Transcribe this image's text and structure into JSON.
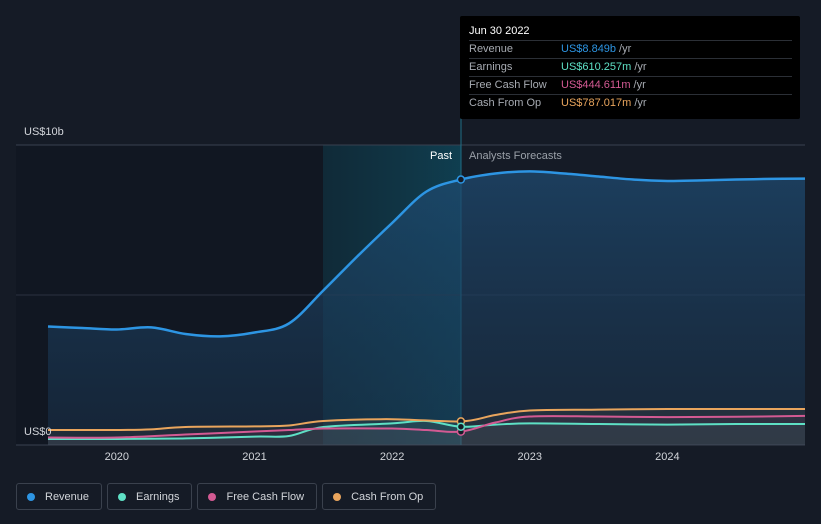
{
  "chart_data": {
    "type": "line",
    "y_axis": {
      "top_label": "US$10b",
      "bottom_label": "US$0",
      "ylim": [
        0,
        10
      ]
    },
    "x_axis": {
      "ticks": [
        "2020",
        "2021",
        "2022",
        "2023",
        "2024"
      ],
      "xlim": [
        2019.5,
        2025.0
      ]
    },
    "regions": {
      "past_label": "Past",
      "forecast_label": "Analysts Forecasts",
      "split_x": 2022.5
    },
    "series": [
      {
        "name": "Revenue",
        "color": "#2d95e3",
        "x": [
          2019.5,
          2019.75,
          2020.0,
          2020.25,
          2020.5,
          2020.75,
          2021.0,
          2021.25,
          2021.5,
          2021.75,
          2022.0,
          2022.25,
          2022.5,
          2022.75,
          2023.0,
          2023.25,
          2023.5,
          2023.75,
          2024.0,
          2024.25,
          2024.5,
          2024.75,
          2025.0
        ],
        "values": [
          3.95,
          3.9,
          3.85,
          3.92,
          3.7,
          3.62,
          3.75,
          4.05,
          5.15,
          6.3,
          7.4,
          8.45,
          8.849,
          9.05,
          9.12,
          9.05,
          8.95,
          8.85,
          8.8,
          8.82,
          8.85,
          8.87,
          8.88
        ]
      },
      {
        "name": "Earnings",
        "color": "#5ee0c5",
        "x": [
          2019.5,
          2020.0,
          2020.5,
          2021.0,
          2021.25,
          2021.5,
          2022.0,
          2022.25,
          2022.5,
          2022.75,
          2023.0,
          2023.5,
          2024.0,
          2024.5,
          2025.0
        ],
        "values": [
          0.2,
          0.2,
          0.22,
          0.28,
          0.3,
          0.6,
          0.72,
          0.8,
          0.61,
          0.68,
          0.72,
          0.7,
          0.68,
          0.7,
          0.7
        ]
      },
      {
        "name": "Free Cash Flow",
        "color": "#d35a93",
        "x": [
          2019.5,
          2020.0,
          2020.5,
          2021.0,
          2021.25,
          2021.5,
          2022.0,
          2022.25,
          2022.5,
          2022.75,
          2023.0,
          2023.5,
          2024.0,
          2024.5,
          2025.0
        ],
        "values": [
          0.25,
          0.25,
          0.35,
          0.45,
          0.5,
          0.55,
          0.55,
          0.5,
          0.445,
          0.75,
          0.95,
          0.95,
          0.93,
          0.94,
          0.97
        ]
      },
      {
        "name": "Cash From Op",
        "color": "#e9a55d",
        "x": [
          2019.5,
          2020.0,
          2020.25,
          2020.5,
          2021.0,
          2021.25,
          2021.5,
          2022.0,
          2022.5,
          2022.75,
          2023.0,
          2023.5,
          2024.0,
          2024.5,
          2025.0
        ],
        "values": [
          0.5,
          0.5,
          0.52,
          0.6,
          0.62,
          0.65,
          0.8,
          0.86,
          0.787,
          1.0,
          1.15,
          1.18,
          1.2,
          1.2,
          1.2
        ]
      }
    ]
  },
  "tooltip": {
    "date": "Jun 30 2022",
    "rows": [
      {
        "label": "Revenue",
        "value": "US$8.849b",
        "unit": "/yr",
        "color": "#2d95e3"
      },
      {
        "label": "Earnings",
        "value": "US$610.257m",
        "unit": "/yr",
        "color": "#5ee0c5"
      },
      {
        "label": "Free Cash Flow",
        "value": "US$444.611m",
        "unit": "/yr",
        "color": "#d35a93"
      },
      {
        "label": "Cash From Op",
        "value": "US$787.017m",
        "unit": "/yr",
        "color": "#e9a55d"
      }
    ]
  },
  "legend": [
    {
      "label": "Revenue",
      "color": "#2d95e3"
    },
    {
      "label": "Earnings",
      "color": "#5ee0c5"
    },
    {
      "label": "Free Cash Flow",
      "color": "#d35a93"
    },
    {
      "label": "Cash From Op",
      "color": "#e9a55d"
    }
  ]
}
